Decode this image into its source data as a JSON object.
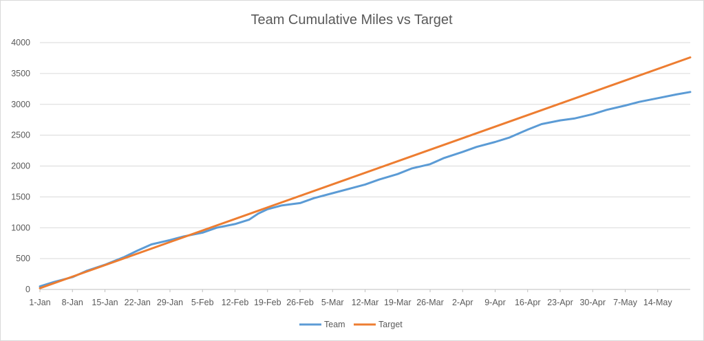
{
  "chart_data": {
    "type": "line",
    "title": "Team Cumulative Miles vs Target",
    "xlabel": "",
    "ylabel": "",
    "ylim": [
      0,
      4000
    ],
    "yticks": [
      0,
      500,
      1000,
      1500,
      2000,
      2500,
      3000,
      3500,
      4000
    ],
    "x_tick_labels": [
      "1-Jan",
      "8-Jan",
      "15-Jan",
      "22-Jan",
      "29-Jan",
      "5-Feb",
      "12-Feb",
      "19-Feb",
      "26-Feb",
      "5-Mar",
      "12-Mar",
      "19-Mar",
      "26-Mar",
      "2-Apr",
      "9-Apr",
      "16-Apr",
      "23-Apr",
      "30-Apr",
      "7-May",
      "14-May"
    ],
    "x_range": [
      "1-Jan",
      "21-May"
    ],
    "grid": "horizontal",
    "legend": "bottom",
    "colors": {
      "Team": "#5b9bd5",
      "Target": "#ed7d31"
    },
    "series": [
      {
        "name": "Team",
        "x": [
          "1-Jan",
          "4-Jan",
          "8-Jan",
          "11-Jan",
          "15-Jan",
          "19-Jan",
          "22-Jan",
          "25-Jan",
          "29-Jan",
          "1-Feb",
          "5-Feb",
          "8-Feb",
          "12-Feb",
          "15-Feb",
          "17-Feb",
          "19-Feb",
          "22-Feb",
          "26-Feb",
          "1-Mar",
          "5-Mar",
          "9-Mar",
          "12-Mar",
          "15-Mar",
          "19-Mar",
          "22-Mar",
          "26-Mar",
          "29-Mar",
          "2-Apr",
          "5-Apr",
          "9-Apr",
          "12-Apr",
          "16-Apr",
          "19-Apr",
          "23-Apr",
          "26-Apr",
          "30-Apr",
          "3-May",
          "7-May",
          "10-May",
          "14-May",
          "18-May",
          "21-May"
        ],
        "y": [
          50,
          120,
          200,
          300,
          400,
          520,
          630,
          730,
          800,
          860,
          920,
          1000,
          1060,
          1130,
          1230,
          1300,
          1360,
          1400,
          1480,
          1560,
          1640,
          1700,
          1780,
          1870,
          1960,
          2030,
          2130,
          2230,
          2310,
          2390,
          2460,
          2590,
          2680,
          2740,
          2770,
          2840,
          2910,
          2980,
          3040,
          3100,
          3160,
          3200
        ]
      },
      {
        "name": "Target",
        "x": [
          "1-Jan",
          "21-May"
        ],
        "y": [
          20,
          3760
        ]
      }
    ]
  }
}
